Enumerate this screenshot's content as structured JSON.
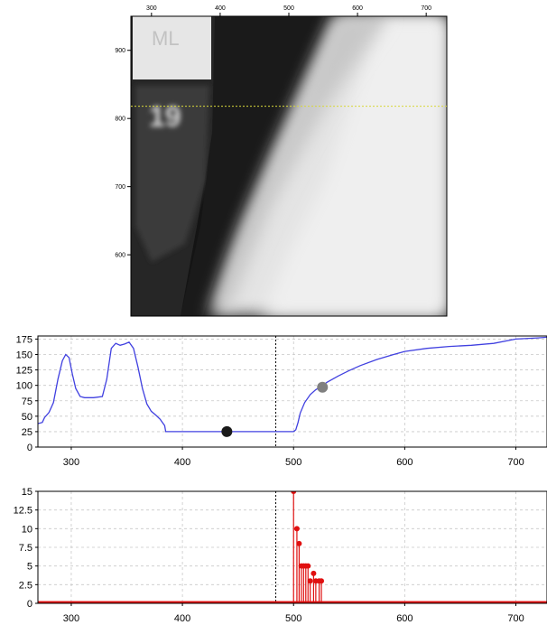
{
  "chart_data": [
    {
      "type": "heatmap",
      "title": "",
      "xlabel": "",
      "ylabel": "",
      "xlim": [
        270,
        730
      ],
      "ylim": [
        510,
        950
      ],
      "x_ticks": [
        300,
        400,
        500,
        600,
        700
      ],
      "y_ticks": [
        600,
        700,
        800,
        900
      ],
      "overlay_text": [
        "ML",
        "19"
      ],
      "profile_line_y": 818,
      "profile_line_color": "#d8d83a"
    },
    {
      "type": "line",
      "title": "",
      "xlabel": "",
      "ylabel": "",
      "xlim": [
        270,
        728
      ],
      "ylim": [
        0,
        180
      ],
      "x_ticks": [
        300,
        400,
        500,
        600,
        700
      ],
      "y_ticks": [
        0,
        25,
        50,
        75,
        100,
        125,
        150,
        175
      ],
      "grid": true,
      "series": [
        {
          "color": "#4040e0",
          "x": [
            270,
            274,
            276,
            280,
            284,
            288,
            292,
            295,
            298,
            301,
            304,
            308,
            312,
            320,
            328,
            332,
            336,
            340,
            344,
            348,
            352,
            356,
            360,
            364,
            368,
            372,
            376,
            380,
            382,
            384,
            385,
            400,
            420,
            440,
            460,
            480,
            495,
            500,
            502,
            504,
            506,
            510,
            515,
            520,
            525,
            530,
            540,
            550,
            560,
            575,
            590,
            600,
            620,
            640,
            660,
            680,
            700,
            720,
            728
          ],
          "y": [
            38,
            40,
            48,
            56,
            72,
            110,
            140,
            150,
            145,
            118,
            95,
            82,
            80,
            80,
            82,
            110,
            160,
            168,
            165,
            167,
            170,
            160,
            130,
            95,
            70,
            58,
            52,
            45,
            40,
            35,
            25,
            25,
            25,
            25,
            25,
            25,
            25,
            25,
            28,
            40,
            55,
            72,
            85,
            93,
            98,
            105,
            115,
            124,
            132,
            142,
            150,
            155,
            160,
            163,
            165,
            168,
            175,
            177,
            178
          ]
        }
      ],
      "markers": [
        {
          "x": 440,
          "y": 25,
          "color": "#1a1a1a"
        },
        {
          "x": 526,
          "y": 97,
          "color": "#808080"
        }
      ],
      "vline_x": 484
    },
    {
      "type": "bar",
      "title": "",
      "xlabel": "",
      "ylabel": "",
      "xlim": [
        270,
        728
      ],
      "ylim": [
        0,
        15
      ],
      "x_ticks": [
        300,
        400,
        500,
        600,
        700
      ],
      "y_ticks": [
        "0",
        "2.5",
        "5",
        "7.5",
        "10",
        "12.5",
        "15"
      ],
      "grid": true,
      "series": [
        {
          "color": "#e01010",
          "x": [
            500,
            503,
            505,
            507,
            509,
            511,
            513,
            515,
            518,
            520,
            523,
            525
          ],
          "values": [
            15,
            10,
            8,
            5,
            5,
            5,
            5,
            3,
            4,
            3,
            3,
            3
          ]
        }
      ],
      "baseline_value": 0.3,
      "vline_x": 484
    }
  ]
}
